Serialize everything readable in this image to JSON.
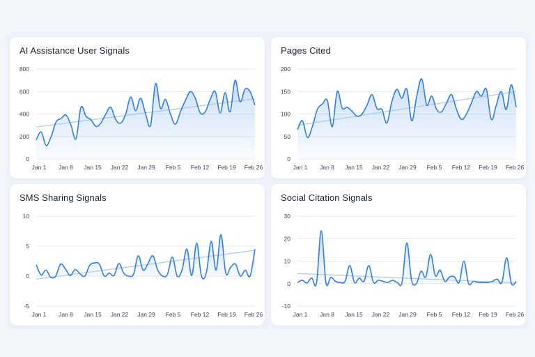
{
  "chart_data": [
    {
      "type": "line",
      "title": "AI Assistance User Signals",
      "x_ticks": [
        "Jan 1",
        "Jan 8",
        "Jan 15",
        "Jan 22",
        "Jan 29",
        "Feb 5",
        "Feb 12",
        "Feb 19",
        "Feb 26"
      ],
      "y_ticks": [
        0,
        200,
        400,
        600,
        800
      ],
      "ylim": [
        0,
        800
      ],
      "grid": true,
      "trendline": [
        285,
        535
      ],
      "values": [
        170,
        240,
        120,
        200,
        330,
        360,
        390,
        300,
        180,
        460,
        380,
        350,
        290,
        320,
        400,
        460,
        350,
        320,
        400,
        550,
        430,
        540,
        400,
        300,
        670,
        450,
        530,
        400,
        310,
        420,
        520,
        600,
        540,
        410,
        420,
        530,
        600,
        410,
        590,
        420,
        700,
        510,
        620,
        600,
        480
      ]
    },
    {
      "type": "line",
      "title": "Pages Cited",
      "x_ticks": [
        "Jan 1",
        "Jan 8",
        "Jan 15",
        "Jan 22",
        "Jan 29",
        "Feb 5",
        "Feb 12",
        "Feb 19",
        "Feb 26"
      ],
      "y_ticks": [
        0,
        50,
        100,
        150,
        200
      ],
      "ylim": [
        0,
        200
      ],
      "grid": true,
      "trendline": [
        75,
        150
      ],
      "values": [
        65,
        85,
        48,
        72,
        110,
        122,
        130,
        72,
        150,
        113,
        115,
        106,
        95,
        100,
        120,
        143,
        112,
        110,
        80,
        128,
        155,
        135,
        155,
        85,
        140,
        178,
        120,
        140,
        110,
        105,
        125,
        143,
        110,
        88,
        100,
        125,
        150,
        140,
        155,
        88,
        120,
        150,
        110,
        165,
        115
      ]
    },
    {
      "type": "line",
      "title": "SMS Sharing Signals",
      "x_ticks": [
        "Jan 1",
        "Jan 8",
        "Jan 15",
        "Jan 22",
        "Jan 29",
        "Feb 5",
        "Feb 12",
        "Feb 19",
        "Feb 26"
      ],
      "y_ticks": [
        -5,
        0,
        5,
        10
      ],
      "ylim": [
        -5,
        10
      ],
      "grid": true,
      "trendline": [
        -0.5,
        4.3
      ],
      "values": [
        1.9,
        0.2,
        1.0,
        -0.2,
        0.0,
        2.0,
        1.2,
        0.1,
        1.1,
        0.4,
        0.0,
        1.8,
        2.2,
        2.0,
        0.0,
        0.5,
        0.1,
        2.1,
        0.5,
        0.0,
        0.3,
        3.4,
        1.0,
        2.1,
        3.4,
        1.0,
        0.0,
        0.3,
        3.2,
        0.0,
        1.0,
        4.5,
        0.1,
        5.5,
        0.0,
        0.6,
        5.8,
        1.0,
        6.9,
        0.5,
        1.5,
        2.0,
        0.0,
        1.0,
        0.0,
        4.5
      ]
    },
    {
      "type": "line",
      "title": "Social Citation Signals",
      "x_ticks": [
        "Jan 1",
        "Jan 8",
        "Jan 15",
        "Jan 22",
        "Jan 29",
        "Feb 5",
        "Feb 12",
        "Feb 19",
        "Feb 26"
      ],
      "y_ticks": [
        -10,
        0,
        10,
        20,
        30
      ],
      "ylim": [
        -10,
        30
      ],
      "grid": true,
      "trendline": [
        4.5,
        0.3
      ],
      "values": [
        0.5,
        1.5,
        0.3,
        2.5,
        0.2,
        23.5,
        0.3,
        2.8,
        1.0,
        0.5,
        1.0,
        8.0,
        0.5,
        2.5,
        1.0,
        8.0,
        0.5,
        1.5,
        1.0,
        0.5,
        1.5,
        0.5,
        0.5,
        18.0,
        1.5,
        0.0,
        5.5,
        3.0,
        13.0,
        3.5,
        6.0,
        1.0,
        3.0,
        3.0,
        0.5,
        10.0,
        0.0,
        1.0,
        0.5,
        0.5,
        0.5,
        1.0,
        2.0,
        0.5,
        11.5,
        0.0,
        1.0
      ]
    }
  ],
  "colors": {
    "line": "#2f7ddf",
    "fill_top": "#5d9be8",
    "trend": "#a9c7f0",
    "grid": "#e6e9f0"
  }
}
